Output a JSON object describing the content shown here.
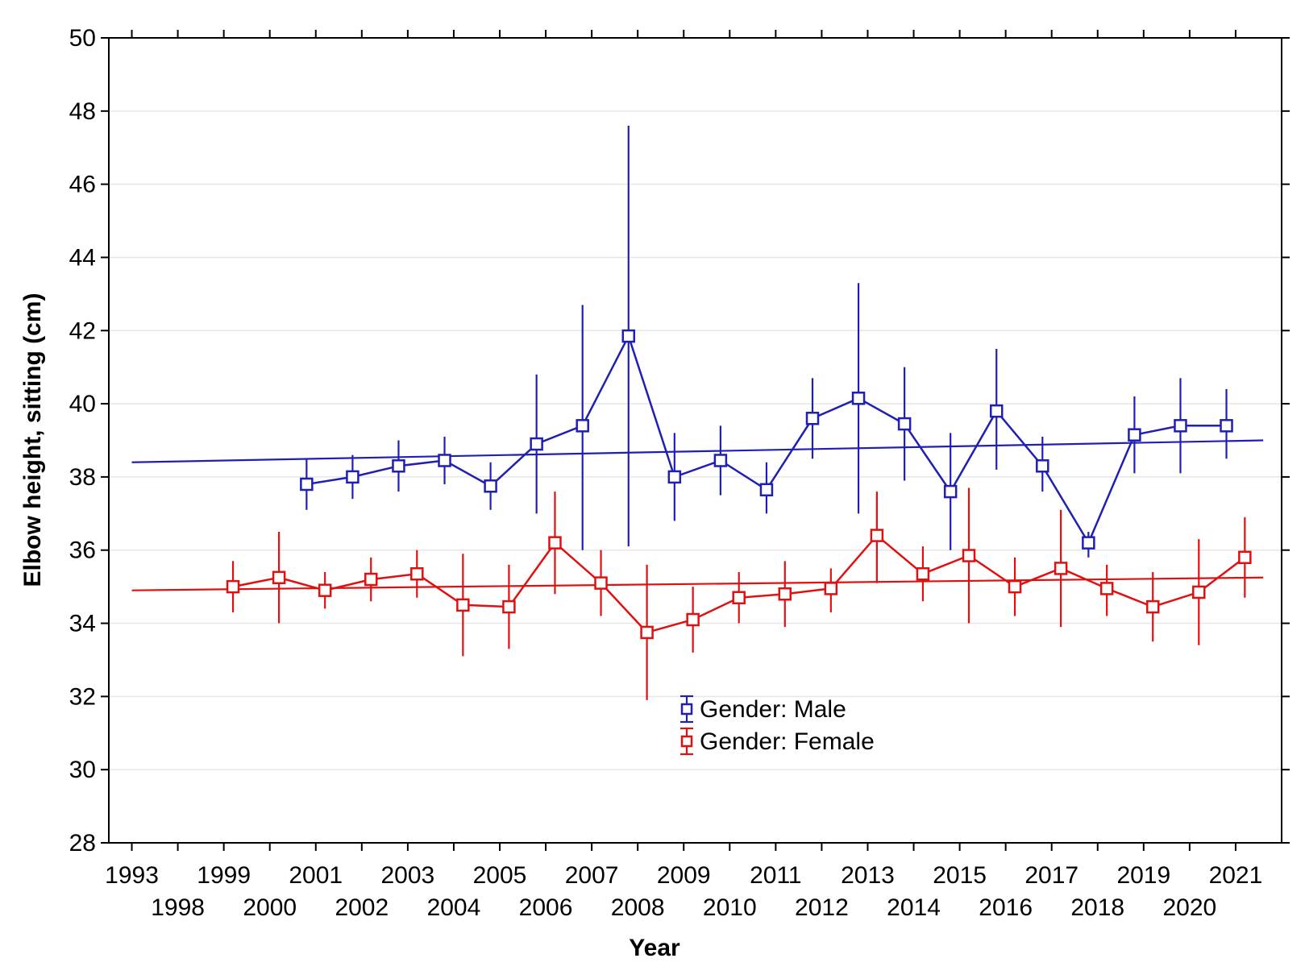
{
  "chart_data": {
    "type": "line",
    "title": "",
    "xlabel": "Year",
    "ylabel": "Elbow height, sitting (cm)",
    "ylim": [
      28,
      50
    ],
    "yticks": [
      28,
      30,
      32,
      34,
      36,
      38,
      40,
      42,
      44,
      46,
      48,
      50
    ],
    "grid": true,
    "legend_position": "center",
    "categories": [
      "1993",
      "1998",
      "1999",
      "2000",
      "2001",
      "2002",
      "2003",
      "2004",
      "2005",
      "2006",
      "2007",
      "2008",
      "2009",
      "2010",
      "2011",
      "2012",
      "2013",
      "2014",
      "2015",
      "2016",
      "2017",
      "2018",
      "2019",
      "2020",
      "2021"
    ],
    "xticks_top": [
      "1993",
      "1999",
      "2001",
      "2003",
      "2005",
      "2007",
      "2009",
      "2011",
      "2013",
      "2015",
      "2017",
      "2019",
      "2021"
    ],
    "xticks_bottom": [
      "1998",
      "2000",
      "2002",
      "2004",
      "2006",
      "2008",
      "2010",
      "2012",
      "2014",
      "2016",
      "2018",
      "2020"
    ],
    "series": [
      {
        "name": "Gender: Male",
        "color": "#1f1fb4",
        "x": [
          "2001",
          "2002",
          "2003",
          "2004",
          "2005",
          "2006",
          "2007",
          "2008",
          "2009",
          "2010",
          "2011",
          "2012",
          "2013",
          "2014",
          "2015",
          "2016",
          "2017",
          "2018",
          "2019",
          "2020",
          "2021"
        ],
        "values": [
          37.8,
          38.0,
          38.3,
          38.45,
          37.75,
          38.9,
          39.4,
          41.85,
          38.0,
          38.45,
          37.65,
          39.6,
          40.15,
          39.45,
          37.6,
          39.8,
          38.3,
          36.2,
          39.15,
          39.4,
          39.4
        ],
        "lower": [
          37.1,
          37.4,
          37.6,
          37.8,
          37.1,
          37.0,
          36.0,
          36.1,
          36.8,
          37.5,
          37.0,
          38.5,
          37.0,
          37.9,
          36.0,
          38.2,
          37.6,
          35.8,
          38.1,
          38.1,
          38.5
        ],
        "upper": [
          38.5,
          38.6,
          39.0,
          39.1,
          38.4,
          40.8,
          42.7,
          47.6,
          39.2,
          39.4,
          38.4,
          40.7,
          43.3,
          41.0,
          39.2,
          41.5,
          39.1,
          36.5,
          40.2,
          40.7,
          40.4
        ],
        "trend": {
          "x": [
            1993,
            2021.6
          ],
          "y": [
            38.4,
            39.0
          ]
        }
      },
      {
        "name": "Gender: Female",
        "color": "#e01010",
        "x": [
          "1999",
          "2000",
          "2001",
          "2002",
          "2003",
          "2004",
          "2005",
          "2006",
          "2007",
          "2008",
          "2009",
          "2010",
          "2011",
          "2012",
          "2013",
          "2014",
          "2015",
          "2016",
          "2017",
          "2018",
          "2019",
          "2020",
          "2021"
        ],
        "values": [
          35.0,
          35.25,
          34.9,
          35.2,
          35.35,
          34.5,
          34.45,
          36.2,
          35.1,
          33.75,
          34.1,
          34.7,
          34.8,
          34.95,
          36.4,
          35.35,
          35.85,
          35.0,
          35.5,
          34.95,
          34.45,
          34.85,
          35.8
        ],
        "lower": [
          34.3,
          34.0,
          34.4,
          34.6,
          34.7,
          33.1,
          33.3,
          34.8,
          34.2,
          31.9,
          33.2,
          34.0,
          33.9,
          34.3,
          35.1,
          34.6,
          34.0,
          34.2,
          33.9,
          34.2,
          33.5,
          33.4,
          34.7
        ],
        "upper": [
          35.7,
          36.5,
          35.4,
          35.8,
          36.0,
          35.9,
          35.6,
          37.6,
          36.0,
          35.6,
          35.0,
          35.4,
          35.7,
          35.5,
          37.6,
          36.1,
          37.7,
          35.8,
          37.1,
          35.6,
          35.4,
          36.3,
          36.9
        ],
        "trend": {
          "x": [
            1993,
            2021.6
          ],
          "y": [
            34.9,
            35.25
          ]
        }
      }
    ]
  }
}
